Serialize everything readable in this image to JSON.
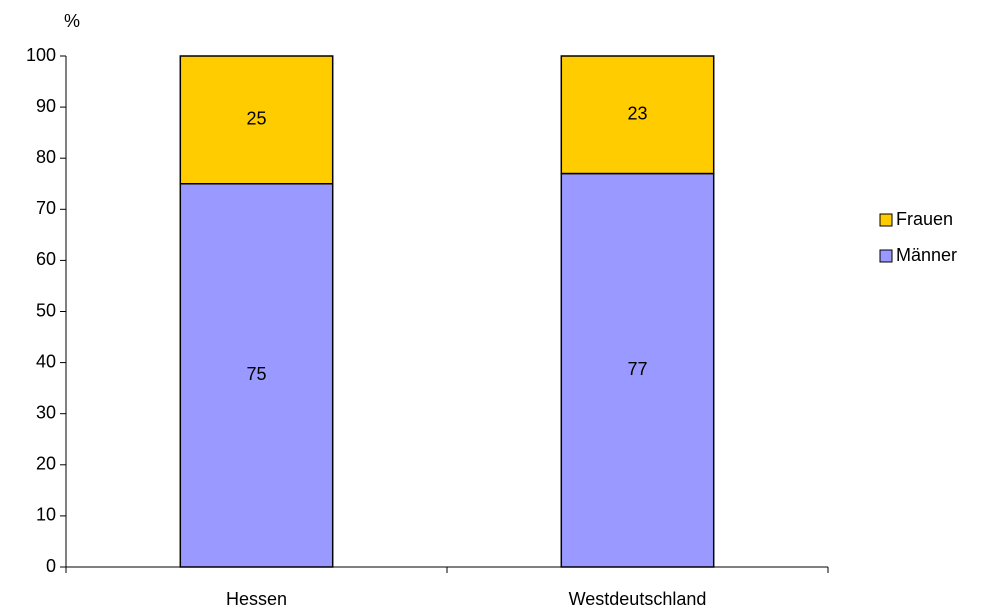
{
  "chart_data": {
    "type": "stacked_bar",
    "y_label": "%",
    "categories": [
      "Hessen",
      "Westdeutschland"
    ],
    "series": [
      {
        "name": "Männer",
        "color": "#9999ff",
        "values": [
          75,
          77
        ]
      },
      {
        "name": "Frauen",
        "color": "#ffcc00",
        "values": [
          25,
          23
        ]
      }
    ],
    "ylim": [
      0,
      100
    ],
    "yticks": [
      0,
      10,
      20,
      30,
      40,
      50,
      60,
      70,
      80,
      90,
      100
    ],
    "grid": false,
    "legend": "right"
  }
}
